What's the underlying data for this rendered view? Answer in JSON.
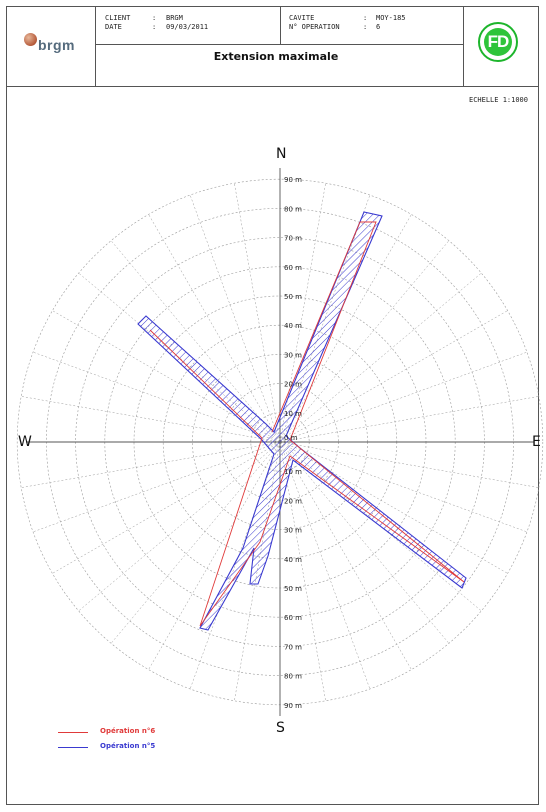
{
  "header": {
    "client_label": "CLIENT",
    "client_value": "BRGM",
    "date_label": "DATE",
    "date_value": "09/03/2011",
    "cavity_label": "CAVITE",
    "cavity_value": "MOY-185",
    "operation_label": "N° OPERATION",
    "operation_value": "6",
    "title": "Extension maximale",
    "left_logo_text": "brgm",
    "right_logo_text": "FD"
  },
  "scale": "ECHELLE 1:1000",
  "compass": {
    "north": "N",
    "south": "S",
    "east": "E",
    "west": "W"
  },
  "distance_labels": [
    "10 m",
    "20 m",
    "30 m",
    "40 m",
    "50 m",
    "60 m",
    "70 m",
    "80 m",
    "90 m"
  ],
  "origin_label": "0 m",
  "legend": [
    {
      "label": "Opération n°6",
      "color": "#e03a3a"
    },
    {
      "label": "Opération n°5",
      "color": "#3a3ad0"
    }
  ],
  "colors": {
    "grid": "#9a9a9a",
    "axis": "#555555",
    "op5": "#3a3ad0",
    "op6": "#e03a3a"
  }
}
